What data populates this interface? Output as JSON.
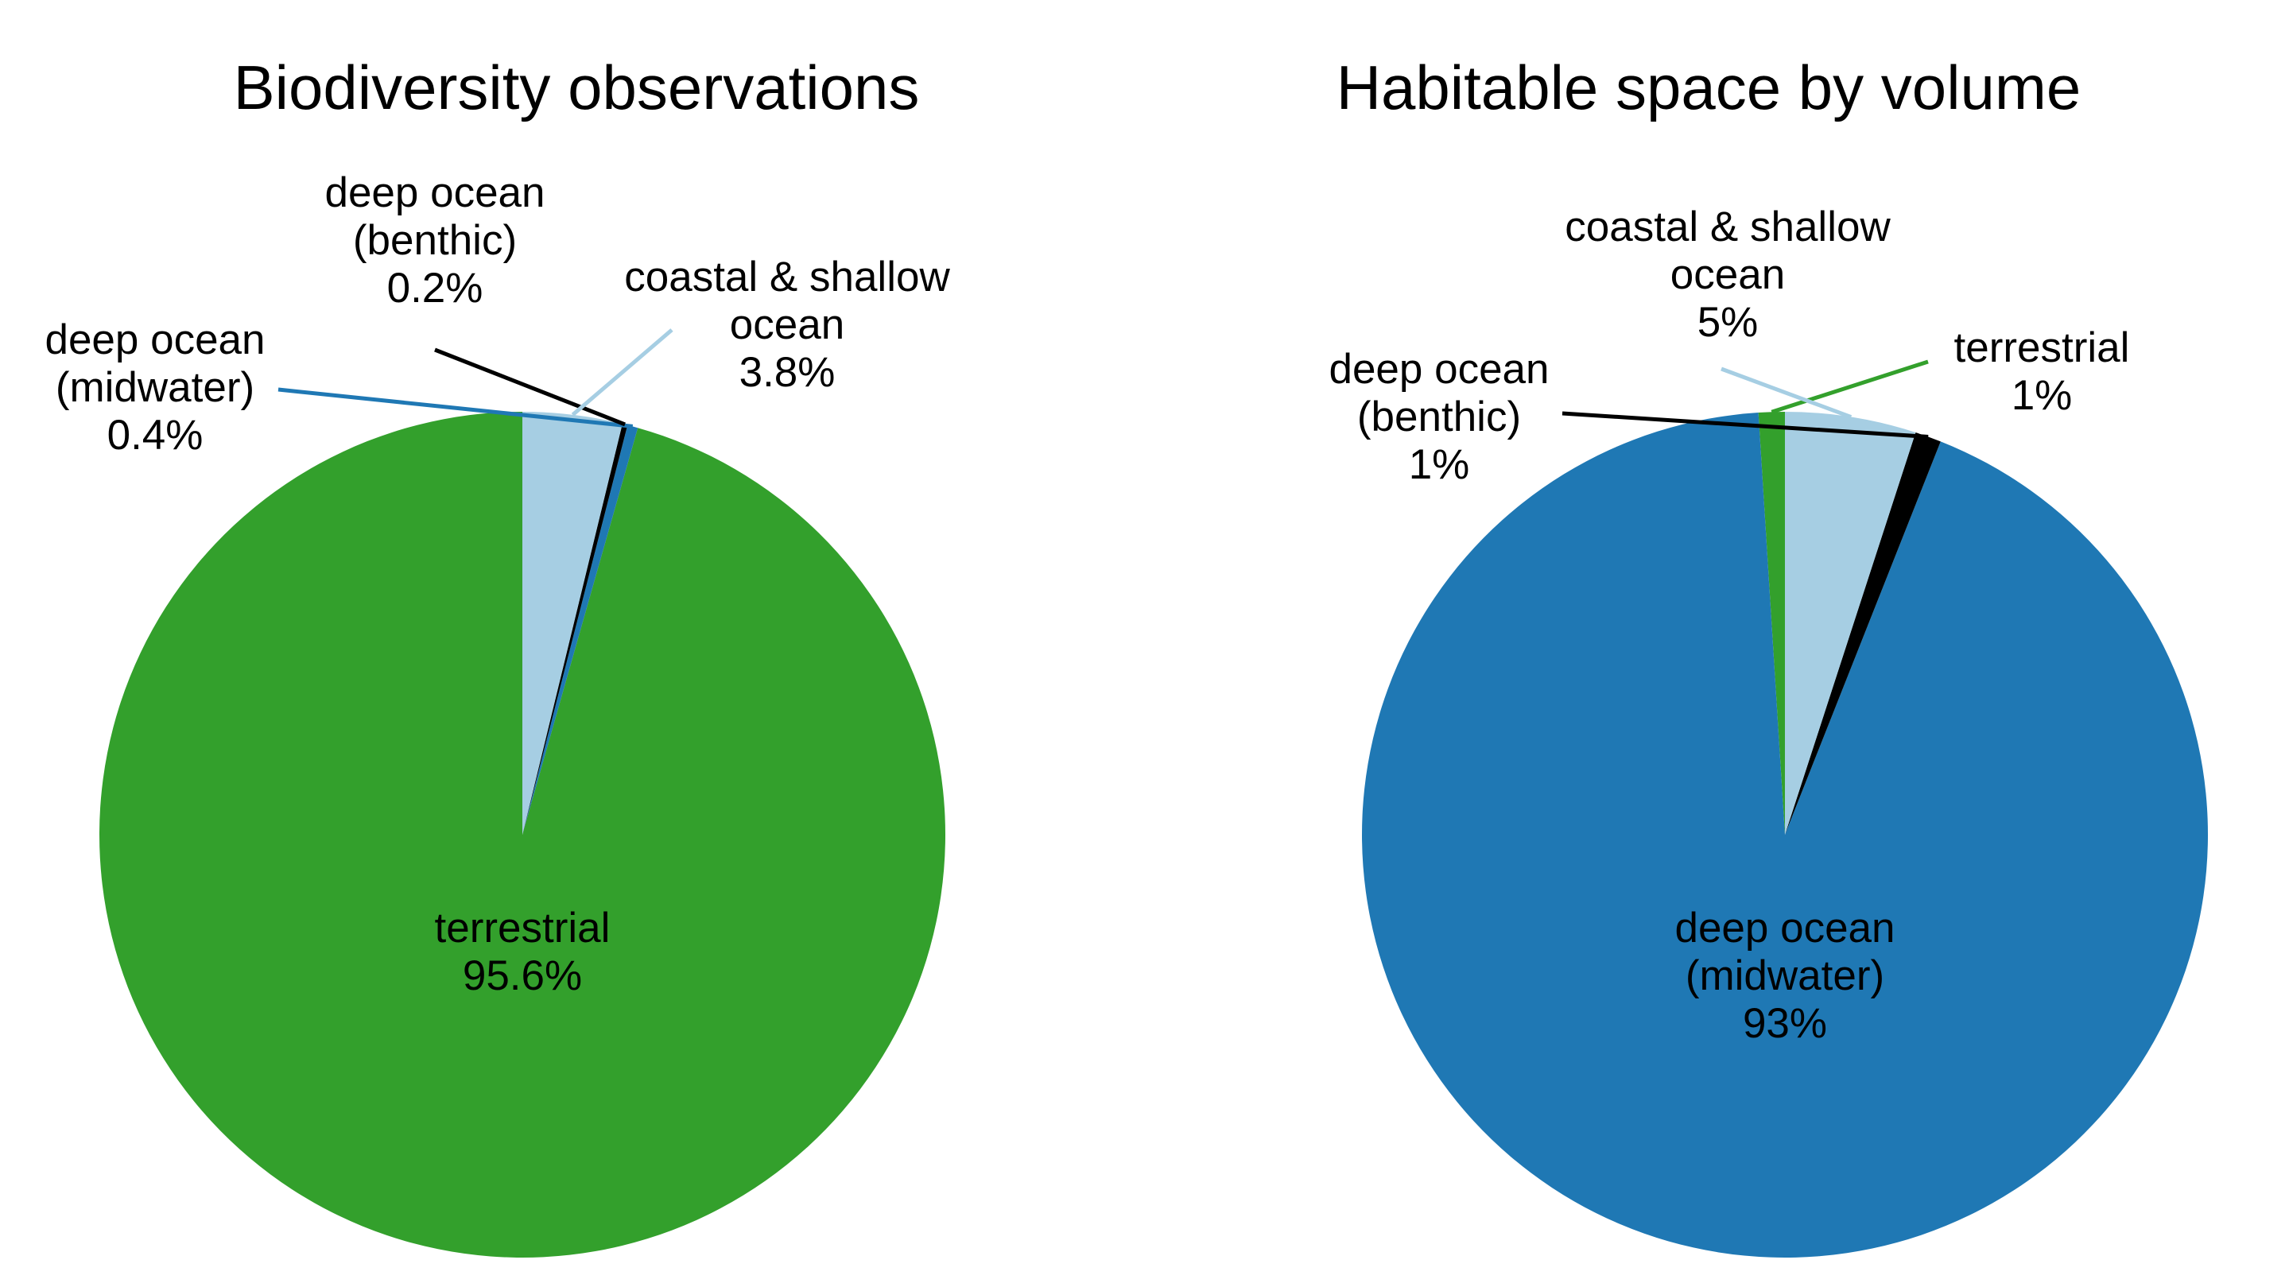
{
  "chart_data": [
    {
      "type": "pie",
      "title": "Biodiversity observations",
      "slices": [
        {
          "lines": [
            "terrestrial"
          ],
          "value": 95.6,
          "value_label": "95.6%",
          "color": "#33a02c",
          "label_inside": true
        },
        {
          "lines": [
            "deep ocean",
            "(midwater)"
          ],
          "value": 0.4,
          "value_label": "0.4%",
          "color": "#1f78b4",
          "label_inside": false
        },
        {
          "lines": [
            "deep ocean",
            "(benthic)"
          ],
          "value": 0.2,
          "value_label": "0.2%",
          "color": "#000000",
          "label_inside": false
        },
        {
          "lines": [
            "coastal & shallow",
            "ocean"
          ],
          "value": 3.8,
          "value_label": "3.8%",
          "color": "#a6cee3",
          "label_inside": false
        }
      ]
    },
    {
      "type": "pie",
      "title": "Habitable space by volume",
      "slices": [
        {
          "lines": [
            "terrestrial"
          ],
          "value": 1,
          "value_label": "1%",
          "color": "#33a02c",
          "label_inside": false
        },
        {
          "lines": [
            "deep ocean",
            "(midwater)"
          ],
          "value": 93,
          "value_label": "93%",
          "color": "#1f78b4",
          "label_inside": true
        },
        {
          "lines": [
            "deep ocean",
            "(benthic)"
          ],
          "value": 1,
          "value_label": "1%",
          "color": "#000000",
          "label_inside": false
        },
        {
          "lines": [
            "coastal & shallow",
            "ocean"
          ],
          "value": 5,
          "value_label": "5%",
          "color": "#a6cee3",
          "label_inside": false
        }
      ]
    }
  ]
}
